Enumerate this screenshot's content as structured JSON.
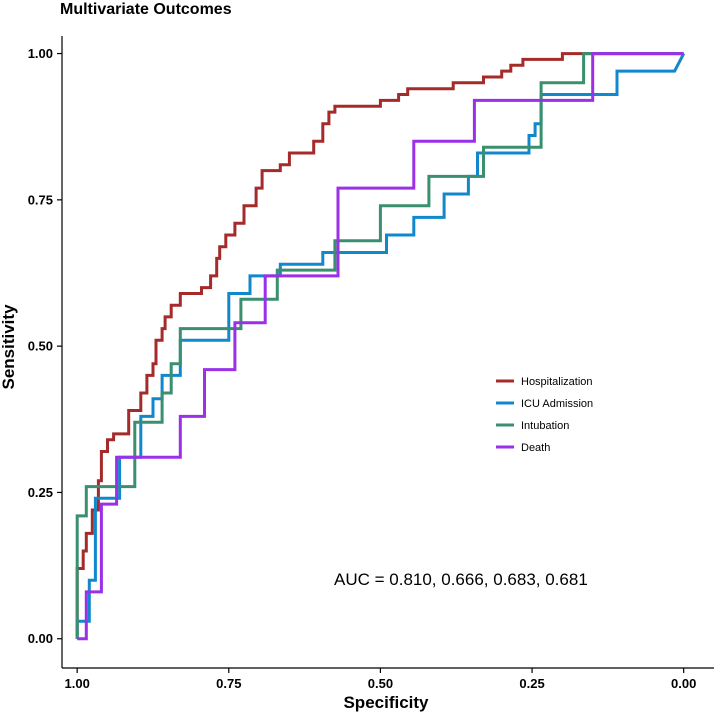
{
  "chart_data": {
    "type": "line",
    "title": "Multivariate Outcomes",
    "xlabel": "Specificity",
    "ylabel": "Sensitivity",
    "xlim": [
      1.025,
      -0.05
    ],
    "ylim": [
      -0.05,
      1.03
    ],
    "x_ticks": [
      1.0,
      0.75,
      0.5,
      0.25,
      0.0
    ],
    "x_tick_labels": [
      "1.00",
      "0.75",
      "0.50",
      "0.25",
      "0.00"
    ],
    "y_ticks": [
      0.0,
      0.25,
      0.5,
      0.75,
      1.0
    ],
    "y_tick_labels": [
      "0.00",
      "0.25",
      "0.50",
      "0.75",
      "1.00"
    ],
    "grid": false,
    "legend_position": "right-middle",
    "annotation": "AUC = 0.810, 0.666, 0.683, 0.681",
    "series": [
      {
        "name": "Hospitalization",
        "color": "#A52A2A",
        "points": [
          [
            1.0,
            0.0
          ],
          [
            1.0,
            0.12
          ],
          [
            0.99,
            0.12
          ],
          [
            0.99,
            0.15
          ],
          [
            0.985,
            0.15
          ],
          [
            0.985,
            0.18
          ],
          [
            0.975,
            0.18
          ],
          [
            0.975,
            0.22
          ],
          [
            0.965,
            0.22
          ],
          [
            0.965,
            0.27
          ],
          [
            0.96,
            0.27
          ],
          [
            0.96,
            0.32
          ],
          [
            0.95,
            0.32
          ],
          [
            0.95,
            0.34
          ],
          [
            0.94,
            0.34
          ],
          [
            0.94,
            0.35
          ],
          [
            0.915,
            0.35
          ],
          [
            0.915,
            0.39
          ],
          [
            0.895,
            0.39
          ],
          [
            0.895,
            0.42
          ],
          [
            0.885,
            0.42
          ],
          [
            0.885,
            0.45
          ],
          [
            0.875,
            0.45
          ],
          [
            0.875,
            0.47
          ],
          [
            0.87,
            0.47
          ],
          [
            0.87,
            0.51
          ],
          [
            0.86,
            0.51
          ],
          [
            0.86,
            0.53
          ],
          [
            0.855,
            0.53
          ],
          [
            0.855,
            0.55
          ],
          [
            0.845,
            0.55
          ],
          [
            0.845,
            0.57
          ],
          [
            0.83,
            0.57
          ],
          [
            0.83,
            0.59
          ],
          [
            0.795,
            0.59
          ],
          [
            0.795,
            0.6
          ],
          [
            0.78,
            0.6
          ],
          [
            0.78,
            0.62
          ],
          [
            0.77,
            0.62
          ],
          [
            0.77,
            0.65
          ],
          [
            0.765,
            0.65
          ],
          [
            0.765,
            0.67
          ],
          [
            0.755,
            0.67
          ],
          [
            0.755,
            0.69
          ],
          [
            0.74,
            0.69
          ],
          [
            0.74,
            0.71
          ],
          [
            0.725,
            0.71
          ],
          [
            0.725,
            0.74
          ],
          [
            0.705,
            0.74
          ],
          [
            0.705,
            0.77
          ],
          [
            0.695,
            0.77
          ],
          [
            0.695,
            0.8
          ],
          [
            0.665,
            0.8
          ],
          [
            0.665,
            0.81
          ],
          [
            0.65,
            0.81
          ],
          [
            0.65,
            0.83
          ],
          [
            0.61,
            0.83
          ],
          [
            0.61,
            0.85
          ],
          [
            0.595,
            0.85
          ],
          [
            0.595,
            0.88
          ],
          [
            0.585,
            0.88
          ],
          [
            0.585,
            0.9
          ],
          [
            0.575,
            0.9
          ],
          [
            0.575,
            0.91
          ],
          [
            0.5,
            0.91
          ],
          [
            0.5,
            0.92
          ],
          [
            0.47,
            0.92
          ],
          [
            0.47,
            0.93
          ],
          [
            0.455,
            0.93
          ],
          [
            0.455,
            0.94
          ],
          [
            0.38,
            0.94
          ],
          [
            0.38,
            0.95
          ],
          [
            0.33,
            0.95
          ],
          [
            0.33,
            0.96
          ],
          [
            0.3,
            0.96
          ],
          [
            0.3,
            0.97
          ],
          [
            0.285,
            0.97
          ],
          [
            0.285,
            0.98
          ],
          [
            0.265,
            0.98
          ],
          [
            0.265,
            0.99
          ],
          [
            0.2,
            0.99
          ],
          [
            0.2,
            1.0
          ],
          [
            0.0,
            1.0
          ]
        ]
      },
      {
        "name": "ICU Admission",
        "color": "#1188CC",
        "points": [
          [
            1.0,
            0.0
          ],
          [
            1.0,
            0.03
          ],
          [
            0.98,
            0.03
          ],
          [
            0.98,
            0.1
          ],
          [
            0.97,
            0.1
          ],
          [
            0.97,
            0.24
          ],
          [
            0.93,
            0.24
          ],
          [
            0.93,
            0.31
          ],
          [
            0.895,
            0.31
          ],
          [
            0.895,
            0.38
          ],
          [
            0.875,
            0.38
          ],
          [
            0.875,
            0.41
          ],
          [
            0.86,
            0.41
          ],
          [
            0.86,
            0.45
          ],
          [
            0.83,
            0.45
          ],
          [
            0.83,
            0.51
          ],
          [
            0.75,
            0.51
          ],
          [
            0.75,
            0.59
          ],
          [
            0.715,
            0.59
          ],
          [
            0.715,
            0.62
          ],
          [
            0.665,
            0.62
          ],
          [
            0.665,
            0.64
          ],
          [
            0.595,
            0.64
          ],
          [
            0.595,
            0.66
          ],
          [
            0.49,
            0.66
          ],
          [
            0.49,
            0.69
          ],
          [
            0.445,
            0.69
          ],
          [
            0.445,
            0.72
          ],
          [
            0.395,
            0.72
          ],
          [
            0.395,
            0.76
          ],
          [
            0.355,
            0.76
          ],
          [
            0.355,
            0.79
          ],
          [
            0.34,
            0.79
          ],
          [
            0.34,
            0.83
          ],
          [
            0.255,
            0.83
          ],
          [
            0.255,
            0.86
          ],
          [
            0.245,
            0.86
          ],
          [
            0.245,
            0.88
          ],
          [
            0.235,
            0.88
          ],
          [
            0.235,
            0.93
          ],
          [
            0.11,
            0.93
          ],
          [
            0.11,
            0.97
          ],
          [
            0.015,
            0.97
          ],
          [
            0.0,
            1.0
          ]
        ]
      },
      {
        "name": "Intubation",
        "color": "#3A8F6E",
        "points": [
          [
            1.0,
            0.0
          ],
          [
            1.0,
            0.21
          ],
          [
            0.985,
            0.21
          ],
          [
            0.985,
            0.26
          ],
          [
            0.905,
            0.26
          ],
          [
            0.905,
            0.37
          ],
          [
            0.86,
            0.37
          ],
          [
            0.86,
            0.42
          ],
          [
            0.845,
            0.42
          ],
          [
            0.845,
            0.47
          ],
          [
            0.83,
            0.47
          ],
          [
            0.83,
            0.53
          ],
          [
            0.73,
            0.53
          ],
          [
            0.73,
            0.58
          ],
          [
            0.67,
            0.58
          ],
          [
            0.67,
            0.63
          ],
          [
            0.575,
            0.63
          ],
          [
            0.575,
            0.68
          ],
          [
            0.5,
            0.68
          ],
          [
            0.5,
            0.74
          ],
          [
            0.42,
            0.74
          ],
          [
            0.42,
            0.79
          ],
          [
            0.33,
            0.79
          ],
          [
            0.33,
            0.84
          ],
          [
            0.235,
            0.84
          ],
          [
            0.235,
            0.95
          ],
          [
            0.165,
            0.95
          ],
          [
            0.165,
            1.0
          ],
          [
            0.0,
            1.0
          ]
        ]
      },
      {
        "name": "Death",
        "color": "#9B30E8",
        "points": [
          [
            1.0,
            0.0
          ],
          [
            0.985,
            0.0
          ],
          [
            0.985,
            0.08
          ],
          [
            0.96,
            0.08
          ],
          [
            0.96,
            0.23
          ],
          [
            0.935,
            0.23
          ],
          [
            0.935,
            0.31
          ],
          [
            0.83,
            0.31
          ],
          [
            0.83,
            0.38
          ],
          [
            0.79,
            0.38
          ],
          [
            0.79,
            0.46
          ],
          [
            0.74,
            0.46
          ],
          [
            0.74,
            0.54
          ],
          [
            0.69,
            0.54
          ],
          [
            0.69,
            0.62
          ],
          [
            0.57,
            0.62
          ],
          [
            0.57,
            0.77
          ],
          [
            0.445,
            0.77
          ],
          [
            0.445,
            0.85
          ],
          [
            0.345,
            0.85
          ],
          [
            0.345,
            0.92
          ],
          [
            0.15,
            0.92
          ],
          [
            0.15,
            1.0
          ],
          [
            0.0,
            1.0
          ]
        ]
      }
    ]
  }
}
